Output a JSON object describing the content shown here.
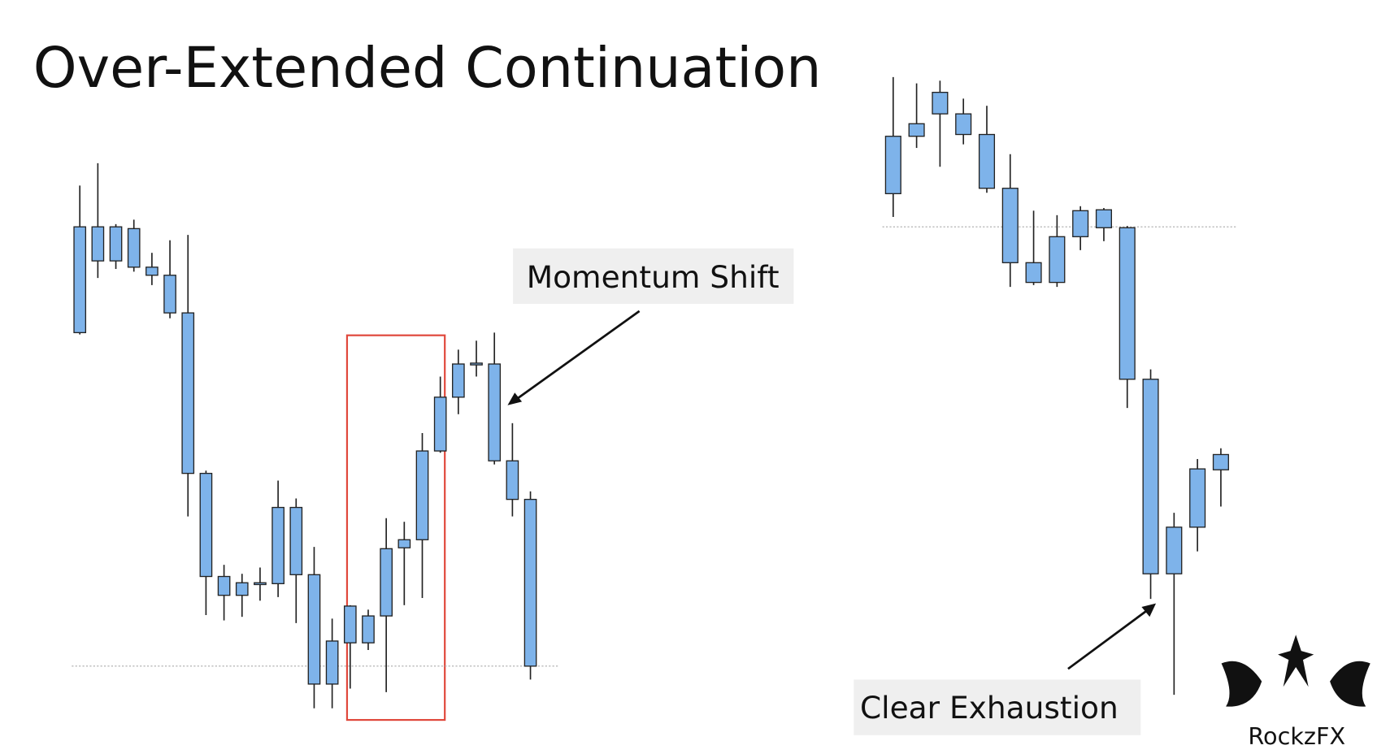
{
  "title": "Over-Extended Continuation",
  "chart_data": [
    {
      "type": "candlestick",
      "annotation": "Momentum Shift",
      "level": 107,
      "color": "#7eb3ea",
      "open": [
        597,
        597,
        559,
        595,
        552,
        543,
        501,
        322,
        207,
        186,
        198,
        199,
        284,
        209,
        87,
        133,
        163,
        163,
        239,
        248,
        347,
        407,
        443,
        444,
        336,
        293
      ],
      "high": [
        643,
        668,
        600,
        605,
        568,
        582,
        588,
        325,
        220,
        210,
        217,
        314,
        294,
        240,
        160,
        175,
        170,
        272,
        268,
        367,
        430,
        460,
        470,
        479,
        378,
        302
      ],
      "low": [
        477,
        540,
        550,
        547,
        532,
        495,
        274,
        164,
        158,
        162,
        180,
        184,
        155,
        60,
        60,
        82,
        125,
        78,
        175,
        183,
        345,
        388,
        430,
        332,
        274,
        92
      ],
      "close": [
        479,
        559,
        597,
        552,
        543,
        501,
        322,
        207,
        186,
        200,
        200,
        284,
        209,
        87,
        135,
        174,
        133,
        238,
        248,
        347,
        407,
        444,
        445,
        336,
        293,
        107
      ]
    },
    {
      "type": "candlestick",
      "annotation": "Clear Exhaustion",
      "level": 597,
      "color": "#7eb3ea",
      "open": [
        634,
        698,
        723,
        723,
        700,
        640,
        557,
        535,
        586,
        616,
        596,
        427,
        210,
        262,
        326
      ],
      "high": [
        764,
        757,
        760,
        740,
        732,
        678,
        615,
        610,
        620,
        618,
        598,
        438,
        278,
        338,
        350
      ],
      "low": [
        608,
        685,
        664,
        689,
        635,
        530,
        532,
        530,
        571,
        581,
        395,
        182,
        75,
        235,
        285
      ],
      "close": [
        698,
        712,
        747,
        700,
        640,
        557,
        535,
        586,
        615,
        596,
        427,
        210,
        262,
        327,
        343
      ]
    }
  ],
  "logo": "RockzFX"
}
